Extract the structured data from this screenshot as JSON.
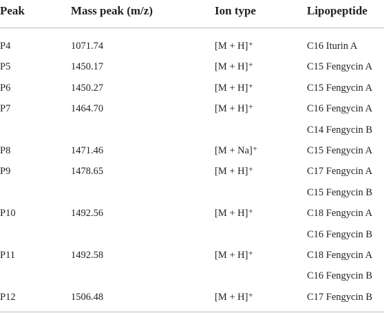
{
  "table": {
    "header": [
      "Peak",
      "Mass peak (m/z)",
      "Ion type",
      "Lipopeptide"
    ],
    "rows": [
      {
        "peak": "P4",
        "mass": "1071.74",
        "ion": "[M + H]⁺",
        "lipopeptides": [
          "C16 Iturin A"
        ]
      },
      {
        "peak": "P5",
        "mass": "1450.17",
        "ion": "[M + H]⁺",
        "lipopeptides": [
          "C15 Fengycin A"
        ]
      },
      {
        "peak": "P6",
        "mass": "1450.27",
        "ion": "[M + H]⁺",
        "lipopeptides": [
          "C15 Fengycin A"
        ]
      },
      {
        "peak": "P7",
        "mass": "1464.70",
        "ion": "[M + H]⁺",
        "lipopeptides": [
          "C16 Fengycin A",
          "C14 Fengycin B"
        ]
      },
      {
        "peak": "P8",
        "mass": "1471.46",
        "ion": "[M + Na]⁺",
        "lipopeptides": [
          "C15 Fengycin A"
        ]
      },
      {
        "peak": "P9",
        "mass": "1478.65",
        "ion": "[M + H]⁺",
        "lipopeptides": [
          "C17 Fengycin A",
          "C15 Fengycin B"
        ]
      },
      {
        "peak": "P10",
        "mass": "1492.56",
        "ion": "[M + H]⁺",
        "lipopeptides": [
          "C18 Fengycin A",
          "C16 Fengycin B"
        ]
      },
      {
        "peak": "P11",
        "mass": "1492.58",
        "ion": "[M + H]⁺",
        "lipopeptides": [
          "C18 Fengycin A",
          "C16 Fengycin B"
        ]
      },
      {
        "peak": "P12",
        "mass": "1506.48",
        "ion": "[M + H]⁺",
        "lipopeptides": [
          "C17 Fengycin B"
        ]
      }
    ]
  }
}
